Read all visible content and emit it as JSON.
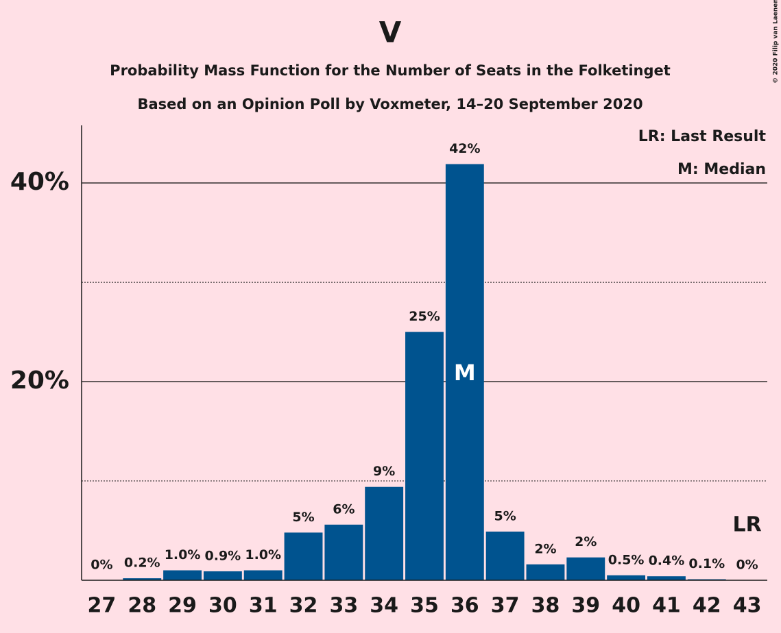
{
  "chart_data": {
    "type": "bar",
    "title": "V",
    "subtitle": "Probability Mass Function for the Number of Seats in the Folketinget",
    "subtitle2": "Based on an Opinion Poll by Voxmeter, 14–20 September 2020",
    "copyright": "© 2020 Filip van Laenen",
    "categories": [
      "27",
      "28",
      "29",
      "30",
      "31",
      "32",
      "33",
      "34",
      "35",
      "36",
      "37",
      "38",
      "39",
      "40",
      "41",
      "42",
      "43"
    ],
    "values": [
      0,
      0.2,
      1.0,
      0.9,
      1.0,
      4.8,
      5.6,
      9.4,
      25.0,
      41.9,
      4.9,
      1.6,
      2.3,
      0.5,
      0.4,
      0.1,
      0
    ],
    "value_labels": [
      "0%",
      "0.2%",
      "1.0%",
      "0.9%",
      "1.0%",
      "5%",
      "6%",
      "9%",
      "25%",
      "42%",
      "5%",
      "2%",
      "2%",
      "0.5%",
      "0.4%",
      "0.1%",
      "0%"
    ],
    "color": "#00538f",
    "ylim": [
      0,
      45.8
    ],
    "yticks": [
      {
        "value": 20,
        "label": "20%"
      },
      {
        "value": 40,
        "label": "40%"
      }
    ],
    "minor_gridlines": [
      10,
      30
    ],
    "grid": true,
    "median_index": 9,
    "median_label": "M",
    "last_result_index": 16,
    "last_result_label": "LR",
    "legend": [
      "LR: Last Result",
      "M: Median"
    ]
  }
}
